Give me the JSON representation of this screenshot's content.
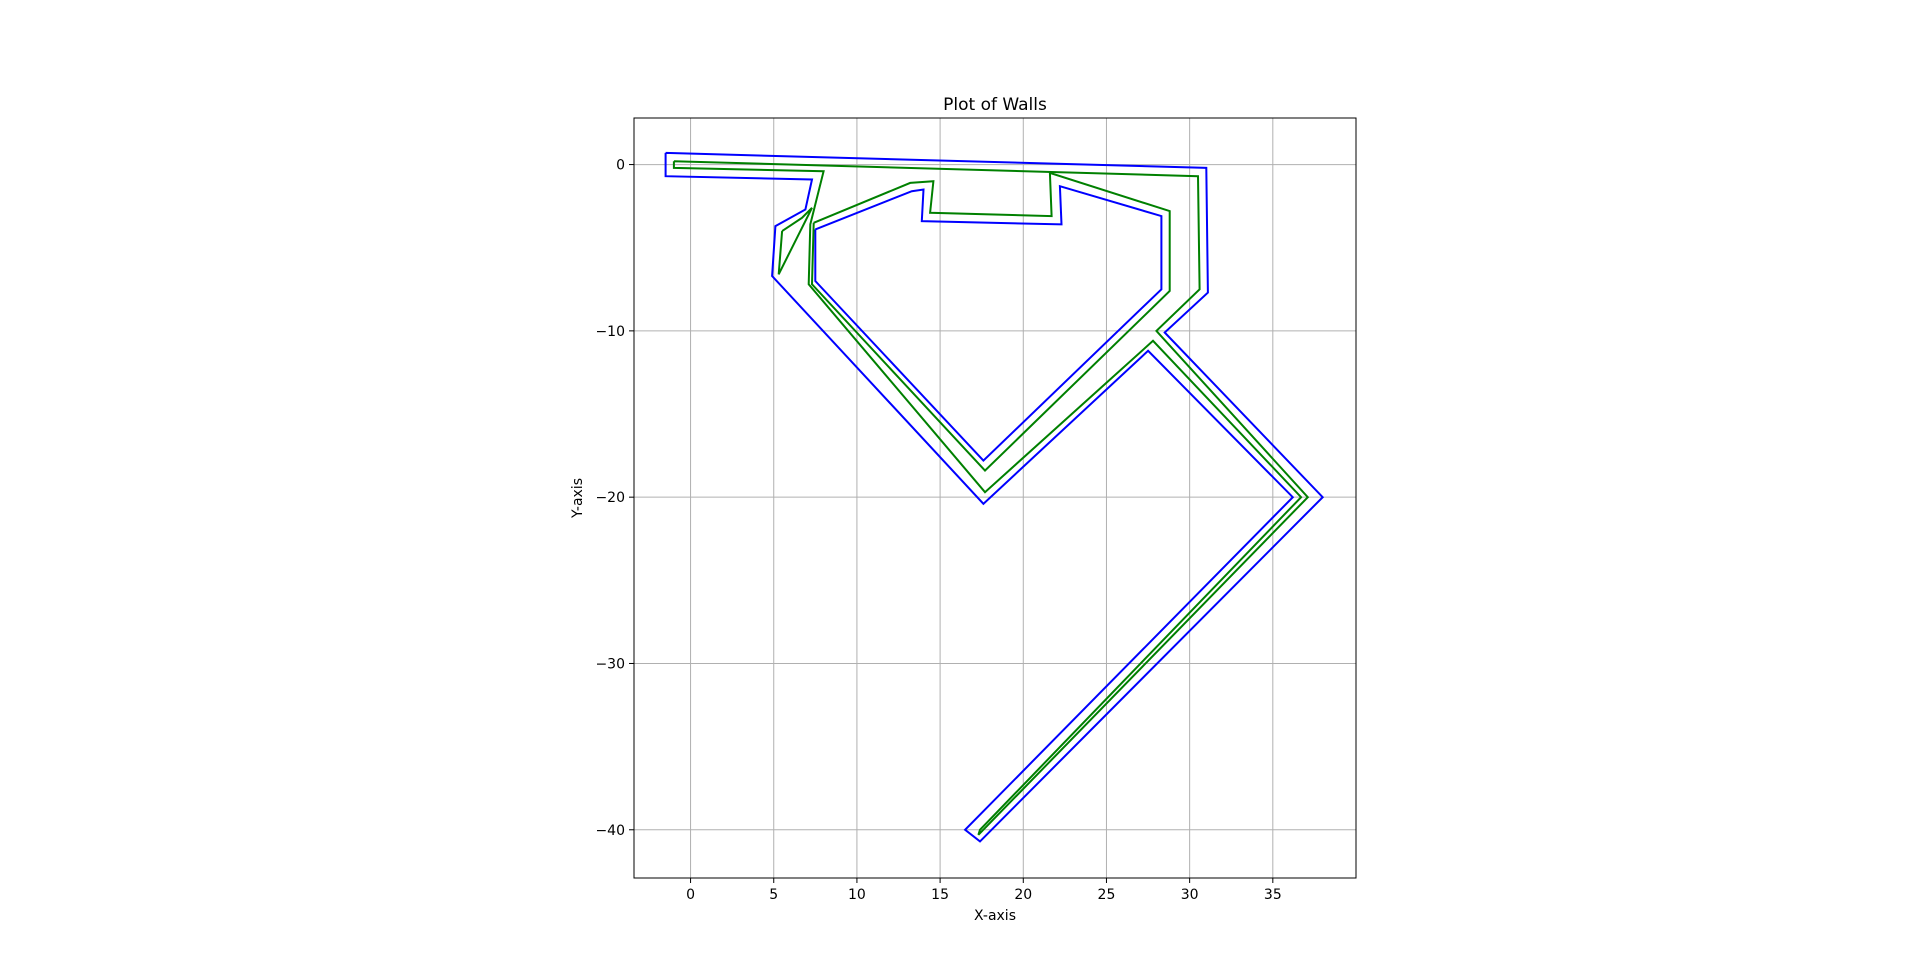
{
  "chart_data": {
    "type": "line",
    "title": "Plot of Walls",
    "xlabel": "X-axis",
    "ylabel": "Y-axis",
    "xlim": [
      -3.4,
      40.0
    ],
    "ylim": [
      -42.9,
      2.8
    ],
    "xticks": [
      0,
      5,
      10,
      15,
      20,
      25,
      30,
      35
    ],
    "yticks": [
      0,
      -10,
      -20,
      -30,
      -40
    ],
    "xtick_labels": [
      "0",
      "5",
      "10",
      "15",
      "20",
      "25",
      "30",
      "35"
    ],
    "ytick_labels": [
      "0",
      "−10",
      "−20",
      "−30",
      "−40"
    ],
    "grid": true,
    "colors": {
      "outer": "#0000ff",
      "inner": "#008000"
    },
    "series": [
      {
        "color": "#0000ff",
        "x": [
          -1.5,
          31.0,
          31.1,
          28.5,
          38.0,
          17.4,
          16.5,
          36.2,
          27.5,
          17.6,
          4.9,
          5.1,
          6.9,
          7.3,
          -1.5,
          -1.5
        ],
        "y": [
          0.7,
          -0.2,
          -7.7,
          -10.1,
          -20.0,
          -40.7,
          -40.0,
          -20.0,
          -11.2,
          -20.4,
          -6.7,
          -3.7,
          -2.7,
          -0.9,
          -0.7,
          0.7
        ]
      },
      {
        "color": "#0000ff",
        "x": [
          7.5,
          13.3,
          14.0,
          13.9,
          22.3,
          22.2,
          28.3,
          28.3,
          17.6,
          7.5,
          7.5
        ],
        "y": [
          -3.9,
          -1.6,
          -1.5,
          -3.4,
          -3.6,
          -1.3,
          -3.1,
          -7.5,
          -17.8,
          -7.0,
          -3.9
        ]
      },
      {
        "color": "#008000",
        "x": [
          -1.0,
          30.5,
          30.6,
          28.0,
          37.1,
          17.3,
          17.4,
          36.7,
          27.8,
          17.7,
          7.1,
          7.2,
          8.0,
          -1.0,
          -1.0
        ],
        "y": [
          0.2,
          -0.7,
          -7.5,
          -10.0,
          -20.0,
          -40.3,
          -40.0,
          -20.0,
          -10.6,
          -19.7,
          -7.2,
          -3.6,
          -0.4,
          -0.2,
          0.2
        ]
      },
      {
        "color": "#008000",
        "x": [
          5.5,
          6.7,
          7.3,
          5.3,
          5.5
        ],
        "y": [
          -4.0,
          -3.2,
          -2.6,
          -6.6,
          -4.0
        ]
      },
      {
        "color": "#008000",
        "x": [
          7.4,
          13.2,
          14.6,
          14.4,
          21.7,
          21.6,
          28.8,
          28.8,
          17.7,
          7.3,
          7.4
        ],
        "y": [
          -3.5,
          -1.1,
          -1.0,
          -2.9,
          -3.1,
          -0.5,
          -2.8,
          -7.6,
          -18.4,
          -7.2,
          -3.5
        ]
      }
    ]
  }
}
